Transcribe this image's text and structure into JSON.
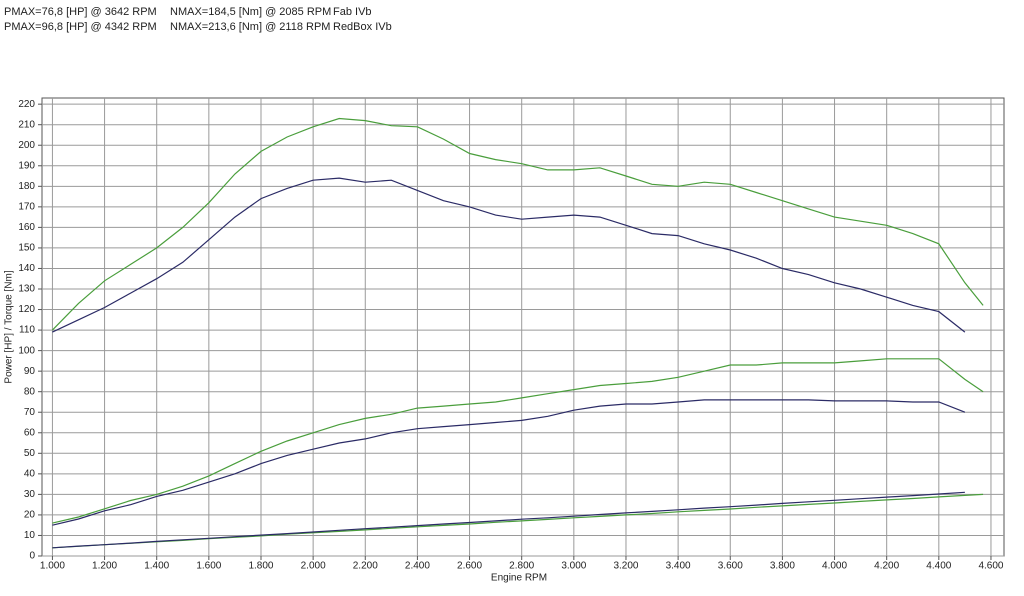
{
  "header_rows": [
    {
      "pmax": "PMAX=76,8 [HP] @ 3642 RPM",
      "nmax": "NMAX=184,5 [Nm] @ 2085 RPM",
      "name": "Fab IVb"
    },
    {
      "pmax": "PMAX=96,8 [HP] @ 4342 RPM",
      "nmax": "NMAX=213,6 [Nm] @ 2118 RPM",
      "name": "RedBox IVb"
    }
  ],
  "chart_data": {
    "type": "line",
    "x_label": "Engine RPM",
    "y_label": "Power [HP] / Torque [Nm]",
    "x": [
      1.0,
      1.1,
      1.2,
      1.3,
      1.4,
      1.5,
      1.6,
      1.7,
      1.8,
      1.9,
      2.0,
      2.1,
      2.2,
      2.3,
      2.4,
      2.5,
      2.6,
      2.7,
      2.8,
      2.9,
      3.0,
      3.1,
      3.2,
      3.3,
      3.4,
      3.5,
      3.6,
      3.7,
      3.8,
      3.9,
      4.0,
      4.1,
      4.2,
      4.3,
      4.4,
      4.5,
      4.57
    ],
    "series": [
      {
        "color": "#4a9e3c",
        "values": [
          110,
          123,
          134,
          142,
          150,
          160,
          172,
          186,
          197,
          204,
          209,
          213,
          212,
          209.5,
          209,
          203,
          196,
          193,
          191,
          188,
          188,
          189,
          185,
          181,
          180,
          182,
          181,
          177,
          173,
          169,
          165,
          163,
          161,
          157,
          152,
          133,
          122
        ]
      },
      {
        "color": "#2b2b66",
        "values": [
          109,
          115,
          121,
          128,
          135,
          143,
          154,
          165,
          174,
          179,
          183,
          184,
          182,
          183,
          178,
          173,
          170,
          166,
          164,
          165,
          166,
          165,
          161,
          157,
          156,
          152,
          149,
          145,
          140,
          137,
          133,
          130,
          126,
          122,
          119,
          109,
          null
        ]
      },
      {
        "color": "#4a9e3c",
        "values": [
          16,
          19,
          23,
          27,
          30,
          34,
          39,
          45,
          51,
          56,
          60,
          64,
          67,
          69,
          72,
          73,
          74,
          75,
          77,
          79,
          81,
          83,
          84,
          85,
          87,
          90,
          93,
          93,
          94,
          94,
          94,
          95,
          96,
          96,
          96,
          86,
          80
        ]
      },
      {
        "color": "#2b2b66",
        "values": [
          15,
          18,
          22,
          25,
          29,
          32,
          36,
          40,
          45,
          49,
          52,
          55,
          57,
          60,
          62,
          63,
          64,
          65,
          66,
          68,
          71,
          73,
          74,
          74,
          75,
          76,
          76,
          76,
          76,
          76,
          75.5,
          75.5,
          75.5,
          75,
          75,
          70,
          null
        ]
      },
      {
        "color": "#4a9e3c",
        "values": [
          4,
          4.7,
          5.5,
          6.2,
          6.9,
          7.6,
          8.4,
          9.1,
          9.8,
          10.6,
          11.3,
          12,
          12.7,
          13.5,
          14.2,
          14.9,
          15.6,
          16.4,
          17.1,
          17.8,
          18.6,
          19.3,
          20,
          20.7,
          21.5,
          22.2,
          22.9,
          23.7,
          24.4,
          25.1,
          25.8,
          26.6,
          27.3,
          28,
          28.8,
          29.5,
          30
        ]
      },
      {
        "color": "#2b2b66",
        "values": [
          4,
          4.8,
          5.5,
          6.3,
          7.1,
          7.9,
          8.6,
          9.4,
          10.2,
          10.9,
          11.7,
          12.5,
          13.3,
          14,
          14.8,
          15.6,
          16.3,
          17.1,
          17.9,
          18.6,
          19.4,
          20.2,
          21,
          21.7,
          22.5,
          23.3,
          24,
          24.8,
          25.6,
          26.4,
          27.1,
          27.9,
          28.7,
          29.4,
          30.2,
          31,
          null
        ]
      }
    ],
    "xlim": [
      0.96,
      4.65
    ],
    "xticks": [
      {
        "value": 1.0,
        "label": "1.000"
      },
      {
        "value": 1.2,
        "label": "1.200"
      },
      {
        "value": 1.4,
        "label": "1.400"
      },
      {
        "value": 1.6,
        "label": "1.600"
      },
      {
        "value": 1.8,
        "label": "1.800"
      },
      {
        "value": 2.0,
        "label": "2.000"
      },
      {
        "value": 2.2,
        "label": "2.200"
      },
      {
        "value": 2.4,
        "label": "2.400"
      },
      {
        "value": 2.6,
        "label": "2.600"
      },
      {
        "value": 2.8,
        "label": "2.800"
      },
      {
        "value": 3.0,
        "label": "3.000"
      },
      {
        "value": 3.2,
        "label": "3.200"
      },
      {
        "value": 3.4,
        "label": "3.400"
      },
      {
        "value": 3.6,
        "label": "3.600"
      },
      {
        "value": 3.8,
        "label": "3.800"
      },
      {
        "value": 4.0,
        "label": "4.000"
      },
      {
        "value": 4.2,
        "label": "4.200"
      },
      {
        "value": 4.4,
        "label": "4.400"
      },
      {
        "value": 4.6,
        "label": "4.600"
      }
    ],
    "ylim": [
      0,
      223
    ],
    "yticks": [
      0,
      10,
      20,
      30,
      40,
      50,
      60,
      70,
      80,
      90,
      100,
      110,
      120,
      130,
      140,
      150,
      160,
      170,
      180,
      190,
      200,
      210,
      220
    ],
    "grid": true
  }
}
